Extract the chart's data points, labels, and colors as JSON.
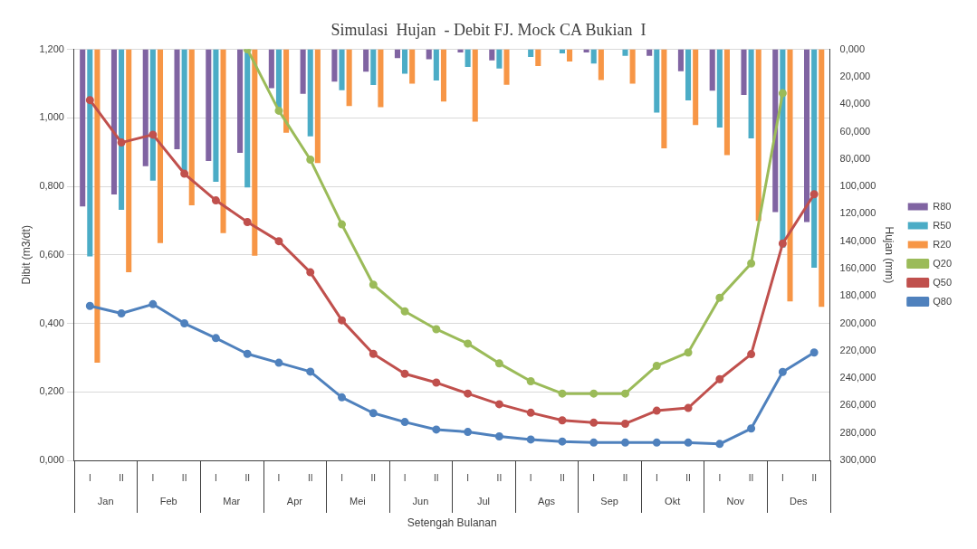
{
  "chart_data": {
    "type": "bar",
    "title": "Simulasi  Hujan  - Debit FJ. Mock CA Bukian  I",
    "categories": [
      "I",
      "II",
      "I",
      "II",
      "I",
      "II",
      "I",
      "II",
      "I",
      "II",
      "I",
      "II",
      "I",
      "II",
      "I",
      "II",
      "I",
      "II",
      "I",
      "II",
      "I",
      "II",
      "I",
      "II"
    ],
    "annotations": [
      "Jan",
      "Feb",
      "Mar",
      "Apr",
      "Mei",
      "Jun",
      "Jul",
      "Ags",
      "Sep",
      "Okt",
      "Nov",
      "Des"
    ],
    "xlabel": "Setengah Bulanan",
    "ylabel": "Dibit (m3/dt)",
    "y2label": "Hujan (mm)",
    "ylim": [
      0,
      1.2
    ],
    "yticks": [
      {
        "value": 0,
        "label": "0,000"
      },
      {
        "value": 0.2,
        "label": "0,200"
      },
      {
        "value": 0.4,
        "label": "0,400"
      },
      {
        "value": 0.6,
        "label": "0,600"
      },
      {
        "value": 0.8,
        "label": "0,800"
      },
      {
        "value": 1.0,
        "label": "1,000"
      },
      {
        "value": 1.2,
        "label": "1,200"
      }
    ],
    "y2lim": [
      300,
      0
    ],
    "y2ticks": [
      {
        "value": 0,
        "label": "0,000"
      },
      {
        "value": 20,
        "label": "20,000"
      },
      {
        "value": 40,
        "label": "40,000"
      },
      {
        "value": 60,
        "label": "60,000"
      },
      {
        "value": 80,
        "label": "80,000"
      },
      {
        "value": 100,
        "label": "100,000"
      },
      {
        "value": 120,
        "label": "120,000"
      },
      {
        "value": 140,
        "label": "140,000"
      },
      {
        "value": 160,
        "label": "160,000"
      },
      {
        "value": 180,
        "label": "180,000"
      },
      {
        "value": 200,
        "label": "200,000"
      },
      {
        "value": 220,
        "label": "220,000"
      },
      {
        "value": 240,
        "label": "240,000"
      },
      {
        "value": 260,
        "label": "260,000"
      },
      {
        "value": 280,
        "label": "280,000"
      },
      {
        "value": 300,
        "label": "300,000"
      }
    ],
    "grid": "y",
    "legend": "right",
    "marker": "circle",
    "line_style": "solid",
    "series": [
      {
        "name": "R80",
        "axis": "y2",
        "color": "#8064a2",
        "values": [
          114.7,
          105.9,
          85.3,
          72.9,
          81.5,
          75.6,
          28.3,
          32.5,
          23.6,
          16.2,
          6.3,
          7.2,
          2.2,
          8.1,
          null,
          null,
          2.2,
          null,
          4.7,
          15.9,
          30.1,
          33.2,
          118.7,
          126.1
        ]
      },
      {
        "name": "R50",
        "axis": "y2",
        "color": "#4bacc6",
        "values": [
          151.2,
          117.1,
          95.8,
          88.6,
          96.7,
          100.8,
          44.3,
          63.5,
          29.8,
          26.0,
          17.7,
          22.7,
          12.8,
          13.9,
          5.6,
          2.9,
          10.3,
          4.7,
          46.2,
          37.3,
          57.0,
          64.9,
          144.7,
          159.3
        ]
      },
      {
        "name": "R20",
        "axis": "y2",
        "color": "#f79646",
        "values": [
          228.7,
          162.7,
          141.4,
          113.8,
          134.2,
          150.6,
          60.8,
          83.0,
          41.3,
          42.2,
          25.1,
          38.1,
          52.7,
          25.8,
          12.1,
          8.8,
          22.4,
          25.1,
          72.3,
          55.2,
          77.2,
          125.2,
          184.0,
          188.0
        ]
      },
      {
        "name": "Q20",
        "type": "line",
        "color": "#9bbb59",
        "values": [
          null,
          null,
          null,
          null,
          null,
          1.2,
          1.021,
          0.878,
          0.689,
          0.513,
          0.435,
          0.383,
          0.341,
          0.283,
          0.231,
          0.195,
          0.195,
          0.195,
          0.276,
          0.315,
          0.475,
          0.575,
          1.072,
          null
        ]
      },
      {
        "name": "Q50",
        "type": "line",
        "color": "#c0504d",
        "values": [
          1.052,
          0.928,
          0.951,
          0.837,
          0.759,
          0.696,
          0.64,
          0.549,
          0.409,
          0.311,
          0.253,
          0.227,
          0.195,
          0.164,
          0.139,
          0.117,
          0.11,
          0.107,
          0.145,
          0.153,
          0.237,
          0.31,
          0.633,
          0.777
        ]
      },
      {
        "name": "Q80",
        "type": "line",
        "color": "#4f81bd",
        "values": [
          0.451,
          0.429,
          0.456,
          0.4,
          0.357,
          0.311,
          0.285,
          0.259,
          0.184,
          0.138,
          0.112,
          0.09,
          0.083,
          0.07,
          0.061,
          0.055,
          0.052,
          0.052,
          0.052,
          0.052,
          0.048,
          0.093,
          0.258,
          0.315
        ]
      }
    ]
  }
}
